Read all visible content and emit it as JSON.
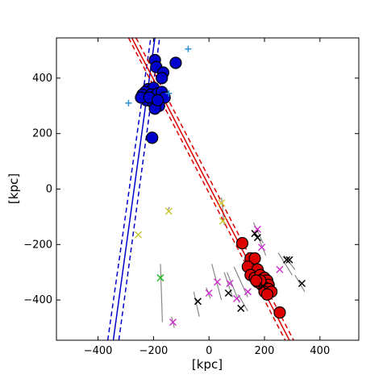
{
  "chart_data": {
    "type": "scatter",
    "xlabel": "[kpc]",
    "ylabel": "[kpc]",
    "xlim": [
      -550,
      540
    ],
    "ylim": [
      -545,
      545
    ],
    "xticks": [
      -400,
      -200,
      0,
      200,
      400
    ],
    "yticks": [
      -400,
      -200,
      0,
      200,
      400
    ],
    "tick_labels_x": [
      "−400",
      "−200",
      "0",
      "200",
      "400"
    ],
    "tick_labels_y": [
      "−400",
      "−200",
      "0",
      "200",
      "400"
    ],
    "grid": false,
    "colors": {
      "blue": "#0000cc",
      "red": "#dd0000",
      "gray": "#888888",
      "cyan": "#2a8fd6",
      "magenta": "#cc33cc",
      "yellow": "#c8c830",
      "green": "#22bb22",
      "black": "#000000"
    },
    "lines": [
      {
        "color": "blue",
        "style": "solid",
        "points": [
          [
            -345,
            -545
          ],
          [
            -195,
            545
          ]
        ]
      },
      {
        "color": "blue",
        "style": "dashed",
        "points": [
          [
            -365,
            -545
          ],
          [
            -210,
            545
          ]
        ]
      },
      {
        "color": "blue",
        "style": "dashed",
        "points": [
          [
            -325,
            -545
          ],
          [
            -178,
            545
          ]
        ]
      },
      {
        "color": "red",
        "style": "solid",
        "points": [
          [
            -278,
            545
          ],
          [
            290,
            -545
          ]
        ]
      },
      {
        "color": "red",
        "style": "dashed",
        "points": [
          [
            -290,
            545
          ],
          [
            275,
            -545
          ]
        ]
      },
      {
        "color": "red",
        "style": "dashed",
        "points": [
          [
            -263,
            545
          ],
          [
            305,
            -545
          ]
        ]
      }
    ],
    "series": [
      {
        "marker": "circle",
        "color": "blue",
        "points": [
          [
            -195,
            465
          ],
          [
            -190,
            440
          ],
          [
            -165,
            420
          ],
          [
            -170,
            400
          ],
          [
            -120,
            455
          ],
          [
            -220,
            360
          ],
          [
            -200,
            365
          ],
          [
            -230,
            350
          ],
          [
            -240,
            340
          ],
          [
            -210,
            340
          ],
          [
            -185,
            345
          ],
          [
            -170,
            350
          ],
          [
            -160,
            330
          ],
          [
            -225,
            320
          ],
          [
            -200,
            310
          ],
          [
            -180,
            300
          ],
          [
            -195,
            290
          ],
          [
            -245,
            330
          ],
          [
            -215,
            330
          ],
          [
            -185,
            320
          ],
          [
            -205,
            185
          ]
        ]
      },
      {
        "marker": "circle",
        "color": "red",
        "points": [
          [
            120,
            -195
          ],
          [
            150,
            -250
          ],
          [
            165,
            -250
          ],
          [
            140,
            -280
          ],
          [
            175,
            -290
          ],
          [
            150,
            -310
          ],
          [
            165,
            -320
          ],
          [
            185,
            -310
          ],
          [
            200,
            -320
          ],
          [
            210,
            -330
          ],
          [
            175,
            -335
          ],
          [
            190,
            -345
          ],
          [
            215,
            -345
          ],
          [
            200,
            -355
          ],
          [
            185,
            -330
          ],
          [
            215,
            -360
          ],
          [
            200,
            -370
          ],
          [
            225,
            -370
          ],
          [
            210,
            -380
          ],
          [
            170,
            -330
          ],
          [
            255,
            -445
          ]
        ]
      },
      {
        "marker": "x",
        "color": "black",
        "points": [
          [
            165,
            -160
          ],
          [
            175,
            -175
          ],
          [
            280,
            -255
          ],
          [
            290,
            -255
          ],
          [
            335,
            -340
          ],
          [
            195,
            -350
          ],
          [
            70,
            -375
          ],
          [
            -40,
            -405
          ],
          [
            115,
            -430
          ]
        ]
      },
      {
        "marker": "x",
        "color": "magenta",
        "points": [
          [
            175,
            -145
          ],
          [
            190,
            -210
          ],
          [
            255,
            -290
          ],
          [
            30,
            -335
          ],
          [
            75,
            -340
          ],
          [
            140,
            -370
          ],
          [
            0,
            -375
          ],
          [
            100,
            -395
          ],
          [
            -130,
            -480
          ]
        ]
      },
      {
        "marker": "x",
        "color": "yellow",
        "points": [
          [
            -145,
            -80
          ],
          [
            45,
            -50
          ],
          [
            50,
            -115
          ],
          [
            -255,
            -165
          ]
        ]
      },
      {
        "marker": "x",
        "color": "green",
        "points": [
          [
            -175,
            -320
          ]
        ]
      },
      {
        "marker": "plus",
        "color": "cyan",
        "points": [
          [
            -290,
            310
          ],
          [
            -75,
            505
          ],
          [
            -145,
            345
          ]
        ]
      }
    ],
    "error_segments": [
      [
        [
          -175,
          -270
        ],
        [
          -168,
          -480
        ]
      ],
      [
        [
          -148,
          -75
        ],
        [
          -142,
          -65
        ]
      ],
      [
        [
          45,
          -30
        ],
        [
          55,
          -130
        ]
      ],
      [
        [
          160,
          -120
        ],
        [
          195,
          -195
        ]
      ],
      [
        [
          180,
          -180
        ],
        [
          205,
          -240
        ]
      ],
      [
        [
          250,
          -230
        ],
        [
          300,
          -310
        ]
      ],
      [
        [
          270,
          -240
        ],
        [
          310,
          -290
        ]
      ],
      [
        [
          310,
          -310
        ],
        [
          345,
          -370
        ]
      ],
      [
        [
          -55,
          -370
        ],
        [
          -35,
          -460
        ]
      ],
      [
        [
          10,
          -270
        ],
        [
          45,
          -400
        ]
      ],
      [
        [
          55,
          -300
        ],
        [
          85,
          -390
        ]
      ],
      [
        [
          65,
          -300
        ],
        [
          110,
          -410
        ]
      ],
      [
        [
          90,
          -280
        ],
        [
          140,
          -390
        ]
      ],
      [
        [
          105,
          -380
        ],
        [
          140,
          -440
        ]
      ],
      [
        [
          -10,
          -355
        ],
        [
          5,
          -395
        ]
      ],
      [
        [
          -135,
          -460
        ],
        [
          -125,
          -500
        ]
      ],
      [
        [
          -140,
          340
        ],
        [
          -150,
          350
        ]
      ]
    ]
  }
}
